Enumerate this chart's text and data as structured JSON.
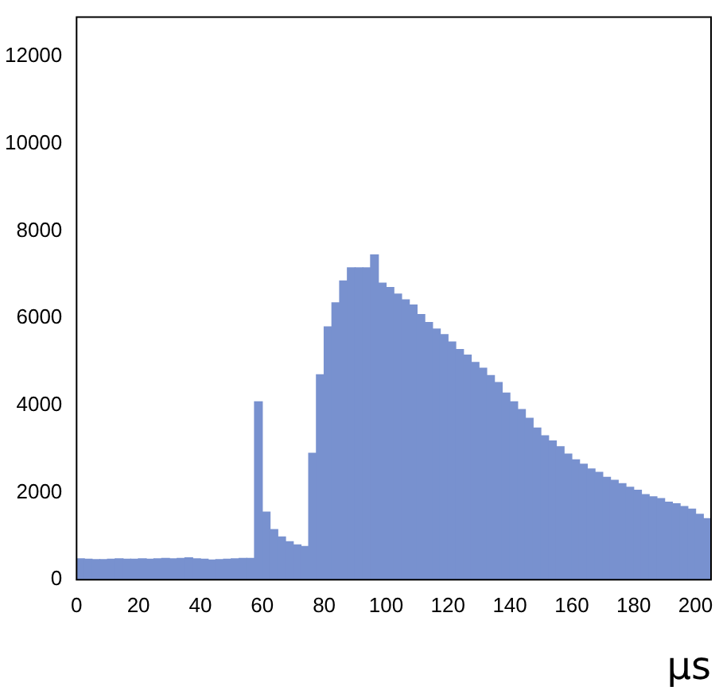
{
  "chart_data": {
    "type": "histogram",
    "xlabel": "µs",
    "color": "#7891cf",
    "bins": [
      0,
      2.5,
      5,
      7.5,
      10,
      12.5,
      15,
      17.5,
      20,
      22.5,
      25,
      27.5,
      30,
      32.5,
      35,
      37.5,
      40,
      42.5,
      45,
      47.5,
      50,
      52.5,
      55,
      57.5,
      60,
      62.5,
      65,
      67.5,
      70,
      72.5,
      75,
      77.5,
      80,
      82.5,
      85,
      87.5,
      90,
      92.5,
      95,
      97.5,
      100,
      102.5,
      105,
      107.5,
      110,
      112.5,
      115,
      117.5,
      120,
      122.5,
      125,
      127.5,
      130,
      132.5,
      135,
      137.5,
      140,
      142.5,
      145,
      147.5,
      150,
      152.5,
      155,
      157.5,
      160,
      162.5,
      165,
      167.5,
      170,
      172.5,
      175,
      177.5,
      180,
      182.5,
      185,
      187.5,
      190,
      192.5,
      195,
      197.5,
      200,
      202.5,
      205
    ],
    "values": [
      480,
      470,
      460,
      460,
      470,
      480,
      470,
      470,
      480,
      470,
      480,
      490,
      480,
      490,
      500,
      480,
      470,
      450,
      460,
      470,
      480,
      490,
      490,
      4080,
      1550,
      1150,
      980,
      870,
      800,
      760,
      2900,
      4700,
      5800,
      6350,
      6850,
      7150,
      7150,
      7150,
      7450,
      6800,
      6700,
      6550,
      6420,
      6300,
      6080,
      5900,
      5750,
      5620,
      5450,
      5280,
      5150,
      4980,
      4850,
      4680,
      4520,
      4280,
      4080,
      3900,
      3700,
      3480,
      3300,
      3180,
      3050,
      2880,
      2750,
      2650,
      2540,
      2460,
      2350,
      2280,
      2200,
      2120,
      2050,
      1950,
      1900,
      1860,
      1780,
      1740,
      1680,
      1620,
      1500,
      1400
    ],
    "xlim": [
      0,
      205
    ],
    "xticks": [
      0,
      20,
      40,
      60,
      80,
      100,
      120,
      140,
      160,
      180,
      200
    ],
    "ylim": [
      0,
      12900
    ],
    "yticks": [
      0,
      2000,
      4000,
      6000,
      8000,
      10000,
      12000
    ],
    "grid": false,
    "legend": false
  }
}
